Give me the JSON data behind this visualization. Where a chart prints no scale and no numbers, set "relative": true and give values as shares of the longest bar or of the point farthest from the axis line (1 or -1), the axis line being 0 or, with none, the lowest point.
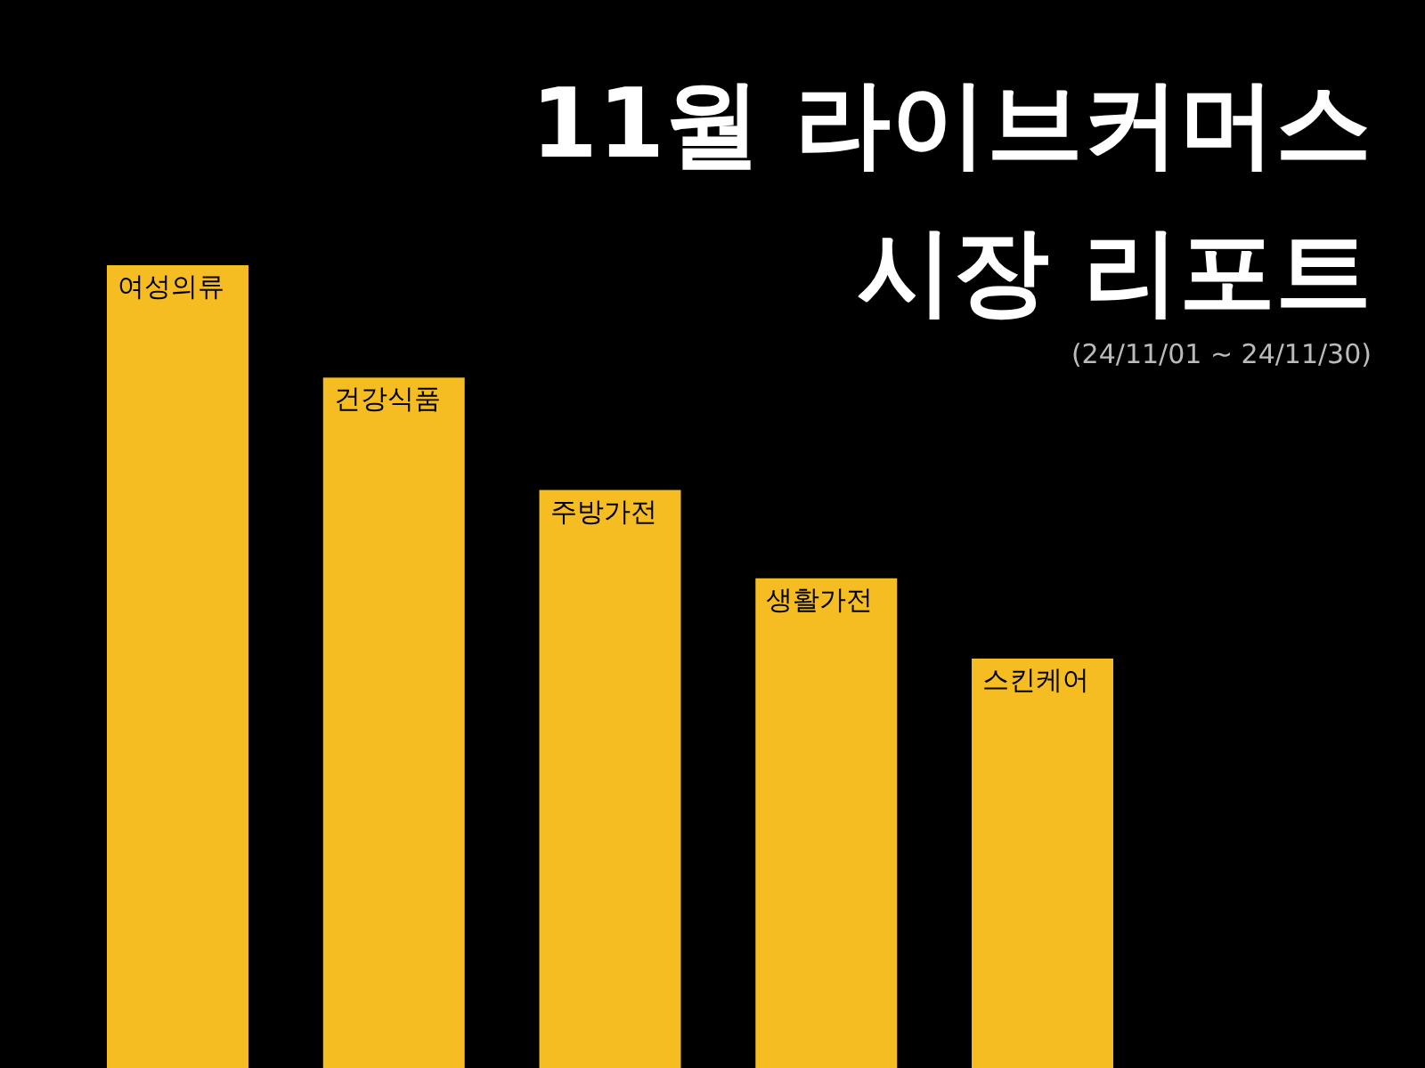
{
  "chart_data": {
    "type": "bar",
    "title": "11월 라이브커머스 시장 리포트",
    "subtitle": "(24/11/01 ~ 24/11/30)",
    "categories": [
      "여성의류",
      "건강식품",
      "주방가전",
      "생활가전",
      "스킨케어"
    ],
    "values": [
      1,
      0.86,
      0.72,
      0.61,
      0.51
    ],
    "color": "#f5bd22",
    "relative": true
  }
}
